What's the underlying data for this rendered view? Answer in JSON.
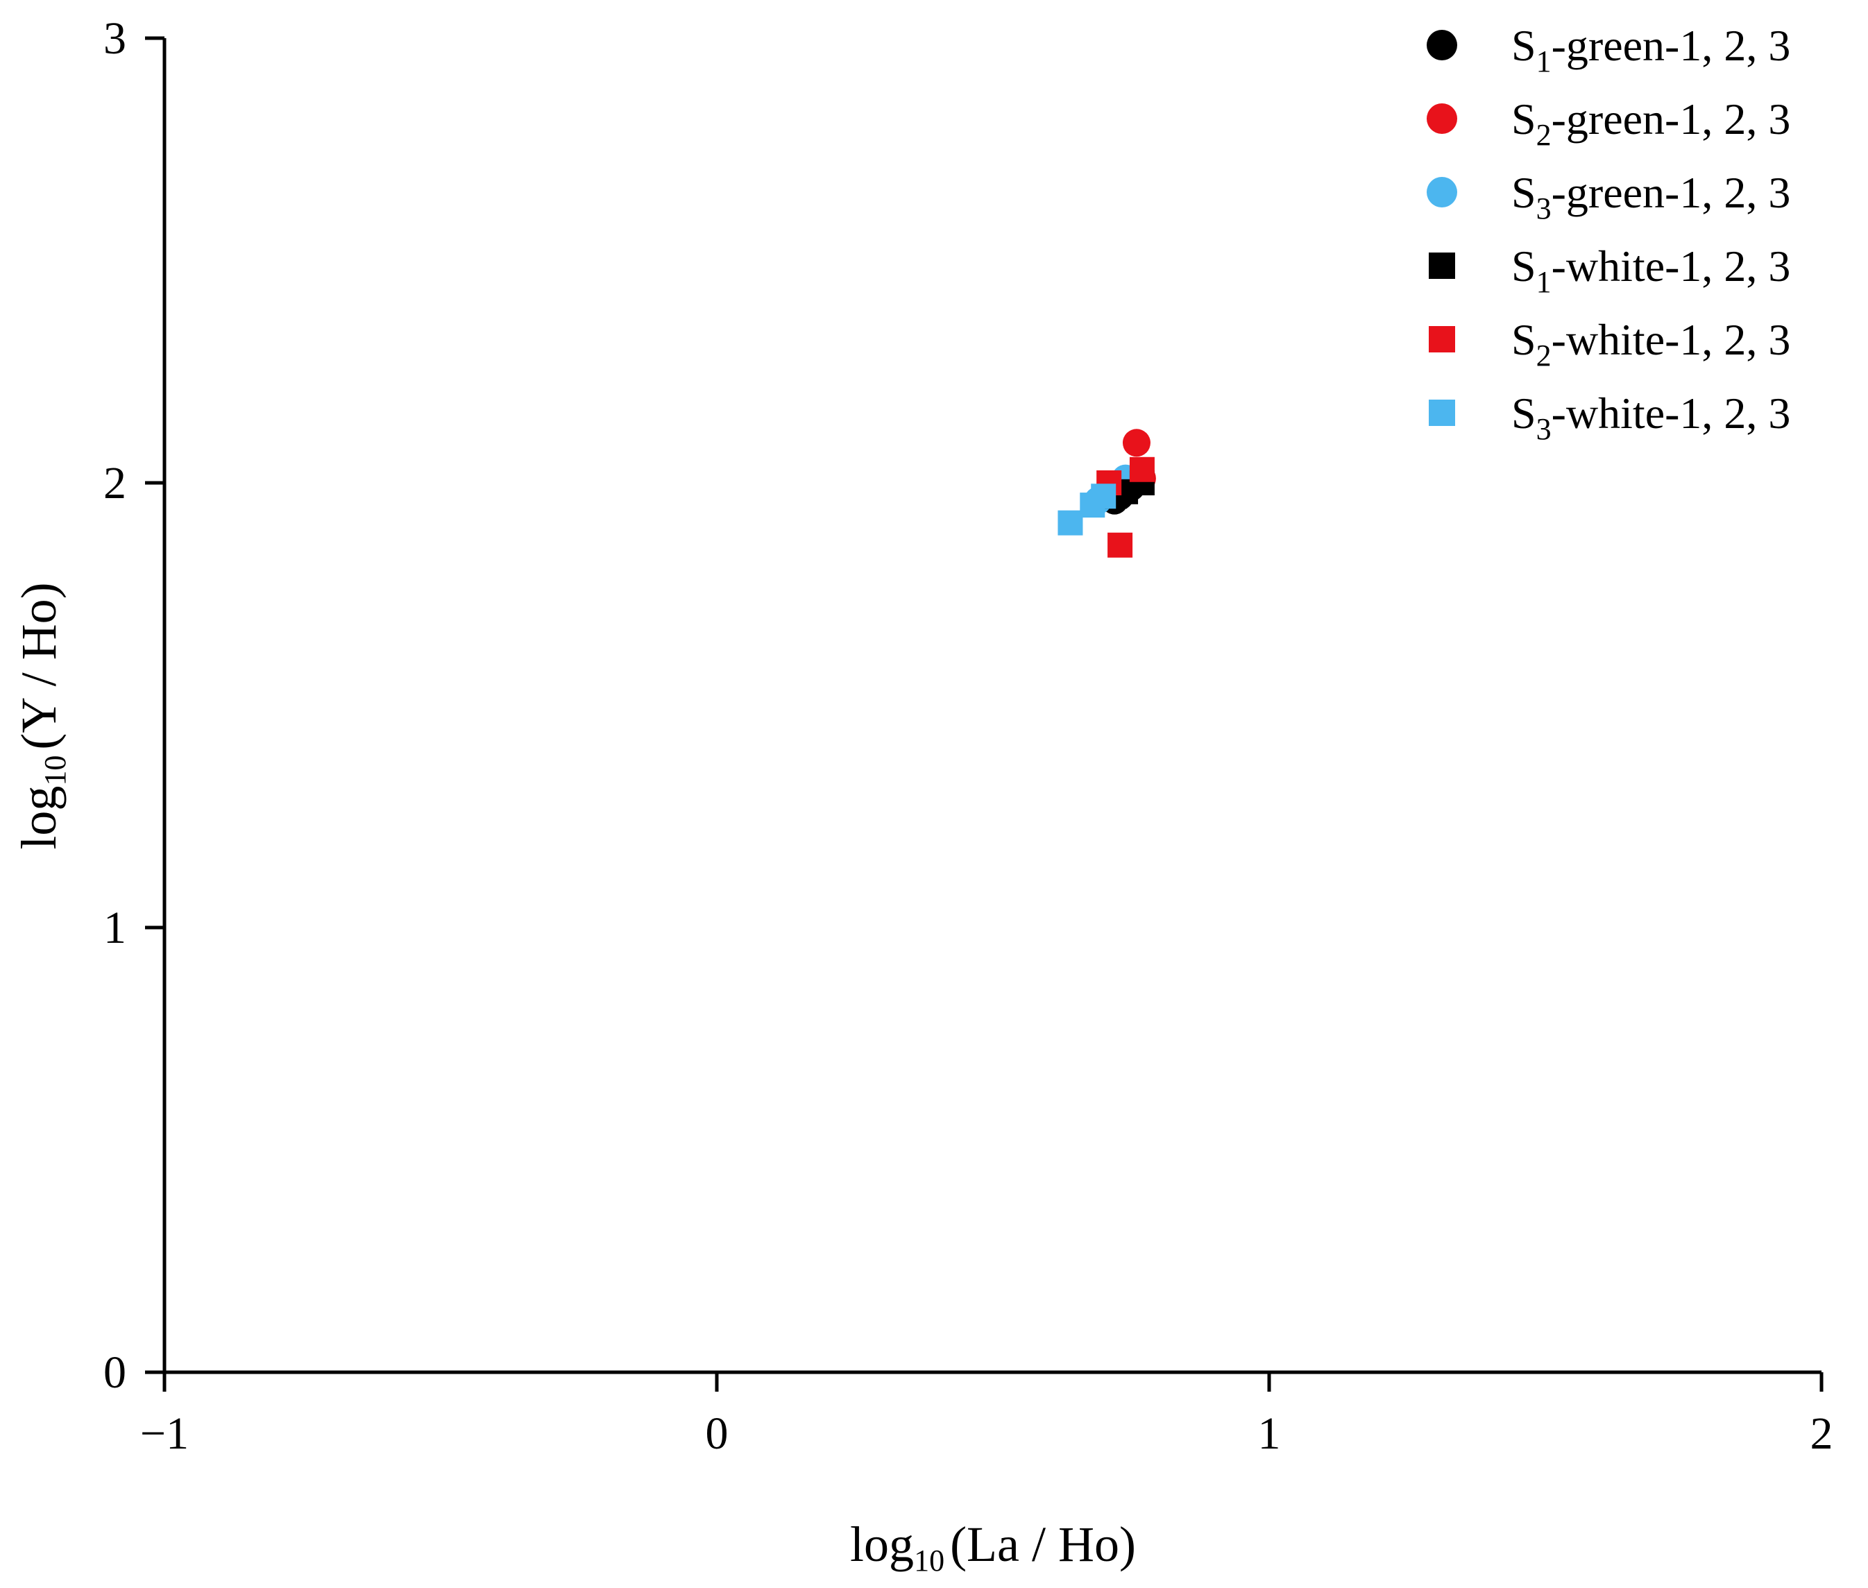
{
  "chart_data": {
    "type": "scatter",
    "x_axis": {
      "label_main": "log",
      "label_sub": "10",
      "label_rest": "(La / Ho)",
      "range": [
        -1,
        2
      ],
      "ticks": [
        -1,
        0,
        1,
        2
      ],
      "tick_labels": [
        "−1",
        "0",
        "1",
        "2"
      ]
    },
    "y_axis": {
      "label_main": "log",
      "label_sub": "10",
      "label_rest": "(Y / Ho)",
      "range": [
        0,
        3
      ],
      "ticks": [
        0,
        1,
        2,
        3
      ],
      "tick_labels": [
        "0",
        "1",
        "2",
        "3"
      ]
    },
    "legend_position": "top-right",
    "series": [
      {
        "name_main": "S",
        "name_sub": "1",
        "name_rest": "-green-1, 2, 3",
        "marker": "circle",
        "color": "#000000",
        "points": [
          [
            0.73,
            1.97
          ],
          [
            0.75,
            1.99
          ],
          [
            0.72,
            1.96
          ]
        ]
      },
      {
        "name_main": "S",
        "name_sub": "2",
        "name_rest": "-green-1, 2, 3",
        "marker": "circle",
        "color": "#e8121b",
        "points": [
          [
            0.76,
            2.09
          ],
          [
            0.77,
            2.01
          ],
          [
            0.74,
            2.0
          ]
        ]
      },
      {
        "name_main": "S",
        "name_sub": "3",
        "name_rest": "-green-1, 2, 3",
        "marker": "circle",
        "color": "#4cb6ef",
        "points": [
          [
            0.74,
            2.01
          ],
          [
            0.71,
            1.98
          ],
          [
            0.69,
            1.96
          ]
        ]
      },
      {
        "name_main": "S",
        "name_sub": "1",
        "name_rest": "-white-1, 2, 3",
        "marker": "square",
        "color": "#000000",
        "points": [
          [
            0.72,
            1.97
          ],
          [
            0.77,
            2.0
          ],
          [
            0.74,
            1.98
          ]
        ]
      },
      {
        "name_main": "S",
        "name_sub": "2",
        "name_rest": "-white-1, 2, 3",
        "marker": "square",
        "color": "#e8121b",
        "points": [
          [
            0.71,
            2.0
          ],
          [
            0.73,
            1.86
          ],
          [
            0.77,
            2.03
          ]
        ]
      },
      {
        "name_main": "S",
        "name_sub": "3",
        "name_rest": "-white-1, 2, 3",
        "marker": "square",
        "color": "#4cb6ef",
        "points": [
          [
            0.64,
            1.91
          ],
          [
            0.68,
            1.95
          ],
          [
            0.7,
            1.97
          ]
        ]
      }
    ]
  }
}
